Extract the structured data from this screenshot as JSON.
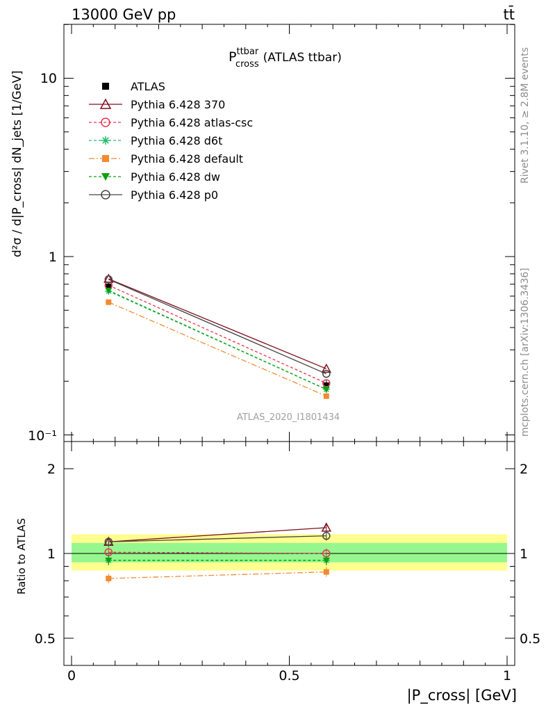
{
  "header": {
    "energy_label": "13000 GeV pp",
    "process_label": "tt̄"
  },
  "sidebar": {
    "rivet_label": "Rivet 3.1.10, ≥ 2.8M events",
    "source_label": "mcplots.cern.ch [arXiv:1306.3436]"
  },
  "chart_data": [
    {
      "type": "line",
      "panel": "main",
      "title_main": "P",
      "title_sup": "ttbar",
      "title_sub": "cross",
      "title_suffix": "(ATLAS ttbar)",
      "watermark": "ATLAS_2020_I1801434",
      "ylabel": "d²σ / d|P_cross| dN_jets [1/GeV]",
      "yscale": "log",
      "xlim": [
        0,
        1
      ],
      "ylim": [
        0.1,
        20
      ],
      "ytick_labels": {
        "t10": "10",
        "t1": "1",
        "t01": "10⁻¹"
      },
      "x": [
        0.085,
        0.585
      ],
      "series": [
        {
          "name": "ATLAS",
          "color": "#000000",
          "marker": "square",
          "dash": "none",
          "values": [
            0.68,
            0.19
          ]
        },
        {
          "name": "Pythia 6.428 370",
          "color": "#7f0f1e",
          "marker": "triangle-open",
          "dash": "solid",
          "values": [
            0.75,
            0.235
          ]
        },
        {
          "name": "Pythia 6.428 atlas-csc",
          "color": "#e8334d",
          "marker": "circle-open",
          "dash": "4,3",
          "values": [
            0.69,
            0.195
          ]
        },
        {
          "name": "Pythia 6.428 d6t",
          "color": "#1fbf6a",
          "marker": "star",
          "dash": "4,3",
          "values": [
            0.64,
            0.18
          ]
        },
        {
          "name": "Pythia 6.428 default",
          "color": "#f28a30",
          "marker": "square",
          "dash": "8,3,2,3",
          "values": [
            0.555,
            0.165
          ]
        },
        {
          "name": "Pythia 6.428 dw",
          "color": "#10a010",
          "marker": "triangle-down",
          "dash": "4,3",
          "values": [
            0.645,
            0.18
          ]
        },
        {
          "name": "Pythia 6.428 p0",
          "color": "#444444",
          "marker": "circle-open",
          "dash": "solid",
          "values": [
            0.745,
            0.22
          ]
        }
      ]
    },
    {
      "type": "line",
      "panel": "ratio",
      "ylabel": "Ratio to ATLAS",
      "xlabel": "|P_cross| [GeV]",
      "xlim": [
        0,
        1
      ],
      "ylim": [
        0.4,
        2.4
      ],
      "ytick_labels": [
        "0.5",
        "1",
        "2"
      ],
      "xtick_labels": [
        "0",
        "0.5",
        "1"
      ],
      "bands": {
        "yellow": [
          0.87,
          1.17
        ],
        "green": [
          0.93,
          1.09
        ]
      },
      "x": [
        0.085,
        0.585
      ],
      "series": [
        {
          "name": "Pythia 6.428 370",
          "values": [
            1.1,
            1.235
          ]
        },
        {
          "name": "Pythia 6.428 atlas-csc",
          "values": [
            1.01,
            1.0
          ]
        },
        {
          "name": "Pythia 6.428 d6t",
          "values": [
            0.945,
            0.945
          ]
        },
        {
          "name": "Pythia 6.428 default",
          "values": [
            0.815,
            0.86
          ]
        },
        {
          "name": "Pythia 6.428 dw",
          "values": [
            0.945,
            0.945
          ]
        },
        {
          "name": "Pythia 6.428 p0",
          "values": [
            1.1,
            1.155
          ]
        }
      ]
    }
  ]
}
